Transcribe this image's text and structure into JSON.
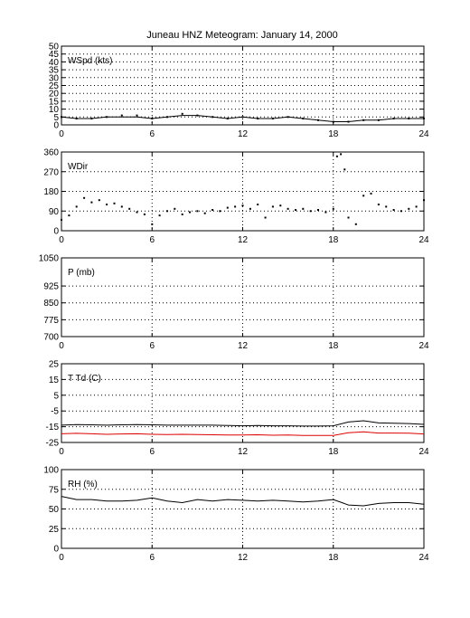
{
  "title": "Juneau HNZ Meteogram:    January 14, 2000",
  "chart_data": [
    {
      "type": "scatter",
      "label": "WSpd (kts)",
      "xlim": [
        0,
        24
      ],
      "ylim": [
        0,
        50
      ],
      "xticks": [
        "0",
        "6",
        "12",
        "18",
        "24"
      ],
      "yticks": [
        "0",
        "5",
        "10",
        "15",
        "20",
        "25",
        "30",
        "35",
        "40",
        "45",
        "50"
      ],
      "grid": true,
      "series": [
        {
          "color": "#000000",
          "style": "dots",
          "x": [
            0,
            1,
            2,
            3,
            4,
            5,
            6,
            7,
            8,
            9,
            10,
            11,
            12,
            13,
            14,
            15,
            16,
            17,
            18,
            19,
            20,
            21,
            22,
            23,
            24
          ],
          "y": [
            5,
            4,
            4,
            5,
            6,
            6,
            4,
            5,
            7,
            6,
            5,
            4,
            5,
            4,
            4,
            5,
            4,
            3,
            2,
            2,
            3,
            3,
            4,
            4,
            4
          ]
        },
        {
          "color": "#000000",
          "style": "line",
          "x": [
            0,
            1,
            2,
            3,
            4,
            5,
            6,
            7,
            8,
            9,
            10,
            11,
            12,
            13,
            14,
            15,
            16,
            17,
            18,
            19,
            20,
            21,
            22,
            23,
            24
          ],
          "y": [
            5,
            4,
            4,
            5,
            5,
            5,
            4,
            5,
            6,
            6,
            5,
            4,
            5,
            4,
            4,
            5,
            4,
            3,
            2,
            2,
            3,
            3,
            4,
            4,
            4
          ]
        }
      ]
    },
    {
      "type": "scatter",
      "label": "WDir",
      "xlim": [
        0,
        24
      ],
      "ylim": [
        0,
        360
      ],
      "xticks": [
        "0",
        "6",
        "12",
        "18",
        "24"
      ],
      "yticks": [
        "0",
        "90",
        "180",
        "270",
        "360"
      ],
      "grid": true,
      "series": [
        {
          "color": "#000000",
          "style": "dots",
          "x": [
            0,
            0.5,
            1,
            1.5,
            2,
            2.5,
            3,
            3.5,
            4,
            4.5,
            5,
            5.5,
            6,
            6.5,
            7,
            7.5,
            8,
            8.5,
            9,
            9.5,
            10,
            10.5,
            11,
            11.5,
            12,
            12.5,
            13,
            13.5,
            14,
            14.5,
            15,
            15.5,
            16,
            16.5,
            17,
            17.5,
            18,
            18.25,
            18.5,
            18.75,
            19,
            19.5,
            20,
            20.5,
            21,
            21.5,
            22,
            22.5,
            23,
            23.5,
            24
          ],
          "y": [
            50,
            70,
            110,
            150,
            130,
            140,
            120,
            125,
            110,
            100,
            85,
            75,
            30,
            70,
            90,
            100,
            75,
            85,
            90,
            80,
            95,
            90,
            105,
            110,
            115,
            100,
            120,
            60,
            110,
            115,
            100,
            95,
            100,
            90,
            95,
            85,
            100,
            340,
            350,
            280,
            60,
            30,
            160,
            170,
            120,
            110,
            95,
            90,
            100,
            110,
            140
          ]
        }
      ]
    },
    {
      "type": "line",
      "label": "P (mb)",
      "xlim": [
        0,
        24
      ],
      "ylim": [
        700,
        1050
      ],
      "xticks": [
        "0",
        "6",
        "12",
        "18",
        "24"
      ],
      "yticks": [
        "700",
        "775",
        "850",
        "925",
        "1050"
      ],
      "ytick_values": [
        700,
        775,
        850,
        925,
        1050
      ],
      "grid": true,
      "series": []
    },
    {
      "type": "line",
      "label": "T Td (C)",
      "xlim": [
        0,
        24
      ],
      "ylim": [
        -25,
        25
      ],
      "xticks": [
        "0",
        "6",
        "12",
        "18",
        "24"
      ],
      "yticks": [
        "-25",
        "-15",
        "-5",
        "5",
        "15",
        "25"
      ],
      "grid": true,
      "series": [
        {
          "color": "#000000",
          "style": "line",
          "x": [
            0,
            1,
            2,
            3,
            4,
            5,
            6,
            7,
            8,
            9,
            10,
            11,
            12,
            13,
            14,
            15,
            16,
            17,
            18,
            19,
            20,
            21,
            22,
            23,
            24
          ],
          "y": [
            -14,
            -13.6,
            -13.8,
            -14,
            -13.8,
            -13.6,
            -13.8,
            -14,
            -14,
            -14,
            -14,
            -14.2,
            -14.4,
            -14.2,
            -14.4,
            -14.4,
            -14.6,
            -14.6,
            -14.4,
            -12,
            -11.2,
            -12.6,
            -12.8,
            -13,
            -13.5
          ]
        },
        {
          "color": "#dd0000",
          "style": "line",
          "x": [
            0,
            1,
            2,
            3,
            4,
            5,
            6,
            7,
            8,
            9,
            10,
            11,
            12,
            13,
            14,
            15,
            16,
            17,
            18,
            19,
            20,
            21,
            22,
            23,
            24
          ],
          "y": [
            -19.5,
            -19.2,
            -19.5,
            -19.8,
            -19.6,
            -19.5,
            -19.8,
            -20,
            -19.8,
            -20,
            -20.1,
            -20.3,
            -20.3,
            -20.1,
            -20.4,
            -20.3,
            -20.6,
            -20.6,
            -20.6,
            -18.8,
            -18.2,
            -19,
            -19,
            -19.1,
            -19.6
          ]
        }
      ]
    },
    {
      "type": "line",
      "label": "RH (%)",
      "xlim": [
        0,
        24
      ],
      "ylim": [
        0,
        100
      ],
      "xticks": [
        "0",
        "6",
        "12",
        "18",
        "24"
      ],
      "yticks": [
        "0",
        "25",
        "50",
        "75",
        "100"
      ],
      "grid": true,
      "series": [
        {
          "color": "#000000",
          "style": "line",
          "x": [
            0,
            1,
            2,
            3,
            4,
            5,
            6,
            7,
            8,
            9,
            10,
            11,
            12,
            13,
            14,
            15,
            16,
            17,
            18,
            19,
            20,
            21,
            22,
            23,
            24
          ],
          "y": [
            66,
            62,
            62,
            60,
            60,
            61,
            64,
            60,
            58,
            62,
            60,
            62,
            61,
            60,
            61,
            60,
            59,
            60,
            62,
            55,
            54,
            57,
            58,
            58,
            56
          ]
        }
      ]
    }
  ]
}
